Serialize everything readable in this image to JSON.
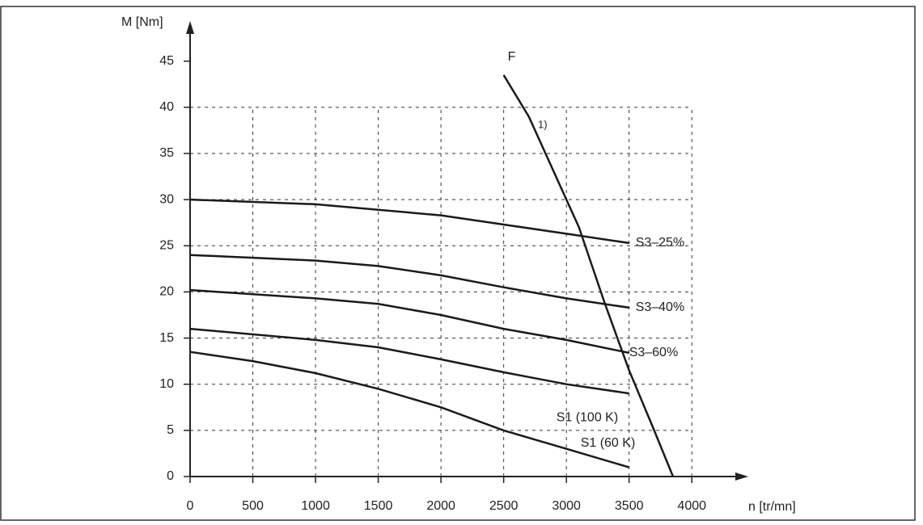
{
  "chart_data": {
    "type": "line",
    "x_label": "n [tr/mn]",
    "y_label": "M [Nm]",
    "xlim": [
      0,
      4450
    ],
    "ylim": [
      0,
      49
    ],
    "xticks": [
      0,
      500,
      1000,
      1500,
      2000,
      2500,
      3000,
      3500,
      4000
    ],
    "yticks": [
      0,
      5,
      10,
      15,
      20,
      25,
      30,
      35,
      40,
      45
    ],
    "grid": true,
    "series": [
      {
        "name": "S3–25%",
        "color": "#1a1a1a",
        "x": [
          0,
          1000,
          2000,
          2500,
          3000,
          3500
        ],
        "values": [
          30,
          29.5,
          28.3,
          27.3,
          26.3,
          25.3
        ]
      },
      {
        "name": "S3–40%",
        "color": "#1a1a1a",
        "x": [
          0,
          1000,
          1500,
          2000,
          2500,
          3000,
          3500
        ],
        "values": [
          24,
          23.4,
          22.8,
          21.8,
          20.5,
          19.3,
          18.3
        ]
      },
      {
        "name": "S3–60%",
        "color": "#1a1a1a",
        "x": [
          0,
          1000,
          1500,
          2000,
          2500,
          3000,
          3500
        ],
        "values": [
          20.2,
          19.3,
          18.7,
          17.5,
          16,
          14.8,
          13.4
        ]
      },
      {
        "name": "S1 (100 K)",
        "color": "#1a1a1a",
        "x": [
          0,
          1000,
          1500,
          2000,
          2500,
          3000,
          3500
        ],
        "values": [
          16,
          14.8,
          14,
          12.7,
          11.3,
          10,
          9
        ]
      },
      {
        "name": "S1 (60 K)",
        "color": "#1a1a1a",
        "x": [
          0,
          500,
          1000,
          1500,
          2000,
          2500,
          3000,
          3500
        ],
        "values": [
          13.5,
          12.5,
          11.2,
          9.5,
          7.5,
          5,
          3,
          1
        ]
      },
      {
        "name": "F",
        "color": "#1a1a1a",
        "x": [
          2500,
          2700,
          2900,
          3100,
          3300,
          3500,
          3700,
          3850
        ],
        "values": [
          43.5,
          39,
          33,
          27,
          19,
          11.5,
          5,
          0
        ]
      }
    ],
    "annotations": [
      "1)"
    ]
  }
}
